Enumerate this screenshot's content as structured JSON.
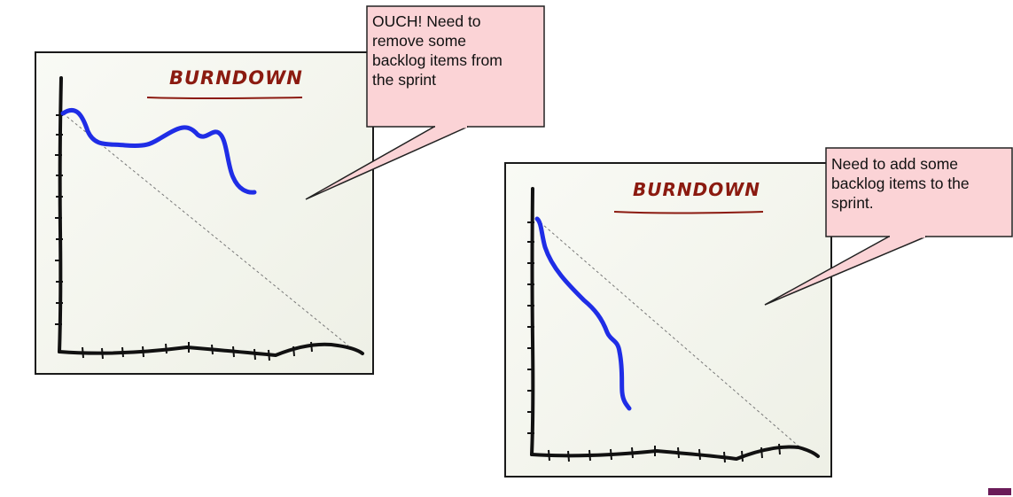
{
  "panels": [
    {
      "title": "BURNDOWN",
      "callout": "OUCH! Need to\nremove some\nbacklog items from\nthe sprint"
    },
    {
      "title": "BURNDOWN",
      "callout": "Need to add some\nbacklog items to the\nsprint."
    }
  ],
  "colors": {
    "burn_line": "#1f2de6",
    "axis": "#111111",
    "title": "#8b1a10",
    "callout_fill": "#fbd3d6",
    "callout_border": "#222222",
    "corner_mark": "#6a1b58"
  }
}
